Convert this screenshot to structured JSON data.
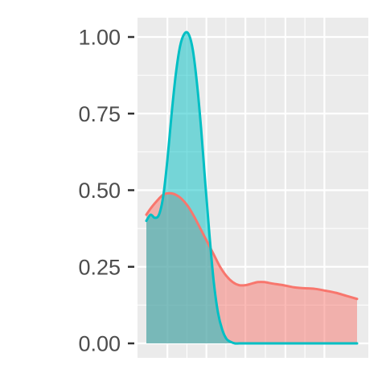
{
  "chart_data": {
    "type": "area",
    "title": "",
    "xlabel": "",
    "ylabel": "",
    "ylim": [
      0,
      1.05
    ],
    "xlim": [
      0,
      1
    ],
    "grid": true,
    "legend": "none",
    "y_ticks": [
      {
        "value": 0.0,
        "label": "0.00"
      },
      {
        "value": 0.25,
        "label": "0.25"
      },
      {
        "value": 0.5,
        "label": "0.50"
      },
      {
        "value": 0.75,
        "label": "0.75"
      },
      {
        "value": 1.0,
        "label": "1.00"
      }
    ],
    "x_gridlines": [
      0.1,
      0.285,
      0.47,
      0.66,
      0.845
    ],
    "colors": {
      "panel_background": "#ebebeb",
      "grid": "#ffffff",
      "axis_ticks": "#333333"
    },
    "series": [
      {
        "line_color": "#f8766d",
        "fill_color": "#f8766d",
        "fill_opacity": 0.5,
        "x": [
          0.0,
          0.02,
          0.05,
          0.08,
          0.11,
          0.14,
          0.17,
          0.2,
          0.23,
          0.26,
          0.29,
          0.32,
          0.35,
          0.38,
          0.41,
          0.44,
          0.47,
          0.5,
          0.53,
          0.56,
          0.6,
          0.65,
          0.7,
          0.75,
          0.8,
          0.85,
          0.9,
          0.95,
          1.0
        ],
        "values": [
          0.42,
          0.44,
          0.465,
          0.485,
          0.49,
          0.485,
          0.47,
          0.445,
          0.41,
          0.37,
          0.33,
          0.29,
          0.25,
          0.22,
          0.2,
          0.19,
          0.19,
          0.195,
          0.2,
          0.2,
          0.195,
          0.19,
          0.183,
          0.18,
          0.178,
          0.172,
          0.165,
          0.155,
          0.145
        ]
      },
      {
        "line_color": "#00bfc4",
        "fill_color": "#00bfc4",
        "fill_opacity": 0.5,
        "x": [
          0.0,
          0.02,
          0.04,
          0.06,
          0.08,
          0.1,
          0.12,
          0.14,
          0.16,
          0.18,
          0.2,
          0.22,
          0.24,
          0.26,
          0.28,
          0.3,
          0.32,
          0.34,
          0.36,
          0.38,
          0.4,
          0.42,
          0.44,
          0.46,
          0.48,
          0.5,
          0.55,
          0.6,
          0.7,
          0.8,
          0.9,
          1.0
        ],
        "values": [
          0.4,
          0.42,
          0.41,
          0.42,
          0.48,
          0.6,
          0.75,
          0.88,
          0.97,
          1.01,
          1.01,
          0.96,
          0.85,
          0.7,
          0.52,
          0.35,
          0.2,
          0.1,
          0.045,
          0.015,
          0.005,
          0.0,
          0.0,
          0.0,
          0.0,
          0.0,
          0.0,
          0.0,
          0.0,
          0.0,
          0.0,
          0.0
        ]
      }
    ]
  }
}
